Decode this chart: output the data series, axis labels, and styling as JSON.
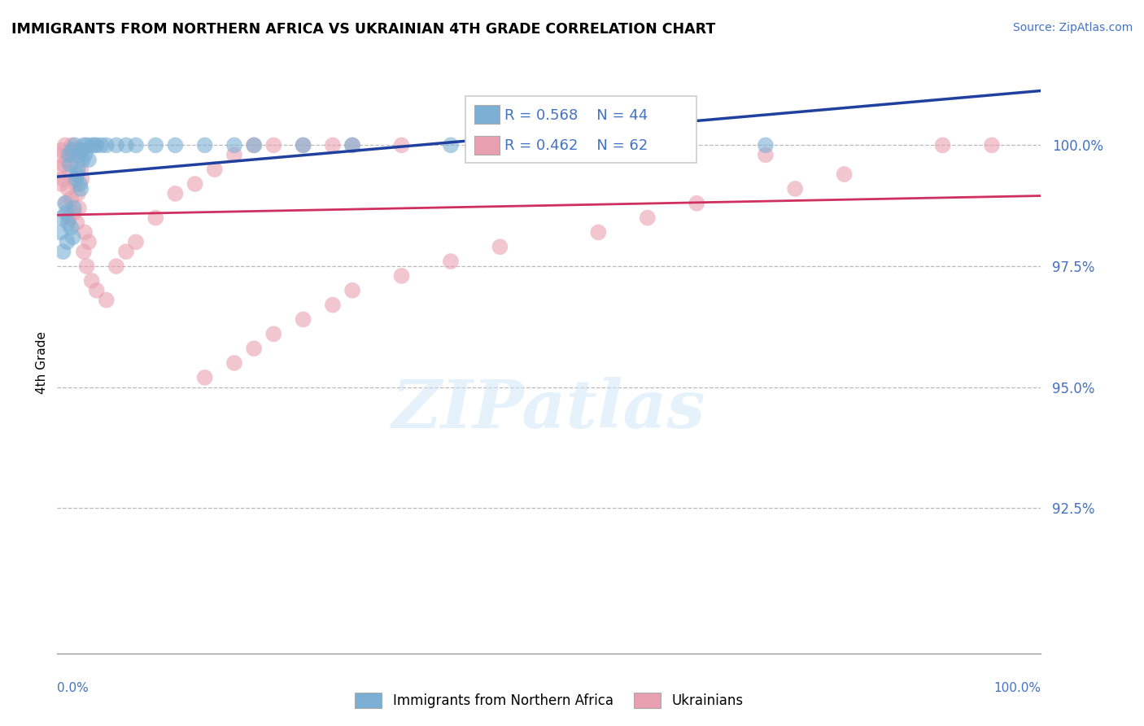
{
  "title": "IMMIGRANTS FROM NORTHERN AFRICA VS UKRAINIAN 4TH GRADE CORRELATION CHART",
  "source_text": "Source: ZipAtlas.com",
  "ylabel": "4th Grade",
  "ytick_vals": [
    92.5,
    95.0,
    97.5,
    100.0
  ],
  "ytick_labels": [
    "92.5%",
    "95.0%",
    "97.5%",
    "100.0%"
  ],
  "xmin": 0.0,
  "xmax": 100.0,
  "ymin": 89.5,
  "ymax": 101.5,
  "legend_r_blue": "R = 0.568",
  "legend_n_blue": "N = 44",
  "legend_r_pink": "R = 0.462",
  "legend_n_pink": "N = 62",
  "legend_label_blue": "Immigrants from Northern Africa",
  "legend_label_pink": "Ukrainians",
  "blue_color": "#7bafd4",
  "pink_color": "#e8a0b0",
  "blue_line_color": "#2040a0",
  "pink_line_color": "#d03060",
  "watermark": "ZIPatlas",
  "blue_scatter_x": [
    0.3,
    0.5,
    0.6,
    0.8,
    0.9,
    1.0,
    1.1,
    1.2,
    1.3,
    1.4,
    1.5,
    1.6,
    1.7,
    1.8,
    1.9,
    2.0,
    2.1,
    2.2,
    2.3,
    2.4,
    2.5,
    2.6,
    2.7,
    2.8,
    3.0,
    3.2,
    3.5,
    3.8,
    4.0,
    4.5,
    5.0,
    6.0,
    7.0,
    8.0,
    10.0,
    12.0,
    15.0,
    18.0,
    20.0,
    25.0,
    30.0,
    40.0,
    50.0,
    72.0
  ],
  "blue_scatter_y": [
    98.2,
    98.5,
    97.8,
    98.8,
    98.6,
    98.0,
    98.4,
    99.8,
    99.6,
    98.3,
    99.9,
    98.1,
    98.7,
    100.0,
    99.3,
    99.4,
    99.5,
    99.8,
    99.2,
    99.1,
    99.9,
    99.7,
    100.0,
    99.8,
    100.0,
    99.7,
    100.0,
    100.0,
    100.0,
    100.0,
    100.0,
    100.0,
    100.0,
    100.0,
    100.0,
    100.0,
    100.0,
    100.0,
    100.0,
    100.0,
    100.0,
    100.0,
    100.0,
    100.0
  ],
  "pink_scatter_x": [
    0.2,
    0.3,
    0.4,
    0.5,
    0.6,
    0.7,
    0.8,
    0.9,
    1.0,
    1.1,
    1.2,
    1.3,
    1.4,
    1.5,
    1.6,
    1.7,
    1.8,
    1.9,
    2.0,
    2.1,
    2.2,
    2.4,
    2.5,
    2.7,
    2.8,
    3.0,
    3.2,
    3.5,
    4.0,
    5.0,
    6.0,
    7.0,
    8.0,
    10.0,
    12.0,
    14.0,
    16.0,
    18.0,
    20.0,
    22.0,
    25.0,
    28.0,
    30.0,
    35.0,
    15.0,
    18.0,
    20.0,
    22.0,
    25.0,
    28.0,
    30.0,
    35.0,
    40.0,
    45.0,
    55.0,
    60.0,
    65.0,
    75.0,
    80.0,
    90.0,
    95.0,
    72.0
  ],
  "pink_scatter_y": [
    99.5,
    99.8,
    99.2,
    99.9,
    99.3,
    99.6,
    100.0,
    98.8,
    99.7,
    99.1,
    98.5,
    99.4,
    98.9,
    100.0,
    99.8,
    98.6,
    99.9,
    99.2,
    98.4,
    99.0,
    98.7,
    99.5,
    99.3,
    97.8,
    98.2,
    97.5,
    98.0,
    97.2,
    97.0,
    96.8,
    97.5,
    97.8,
    98.0,
    98.5,
    99.0,
    99.2,
    99.5,
    99.8,
    100.0,
    100.0,
    100.0,
    100.0,
    100.0,
    100.0,
    95.2,
    95.5,
    95.8,
    96.1,
    96.4,
    96.7,
    97.0,
    97.3,
    97.6,
    97.9,
    98.2,
    98.5,
    98.8,
    99.1,
    99.4,
    100.0,
    100.0,
    99.8
  ]
}
